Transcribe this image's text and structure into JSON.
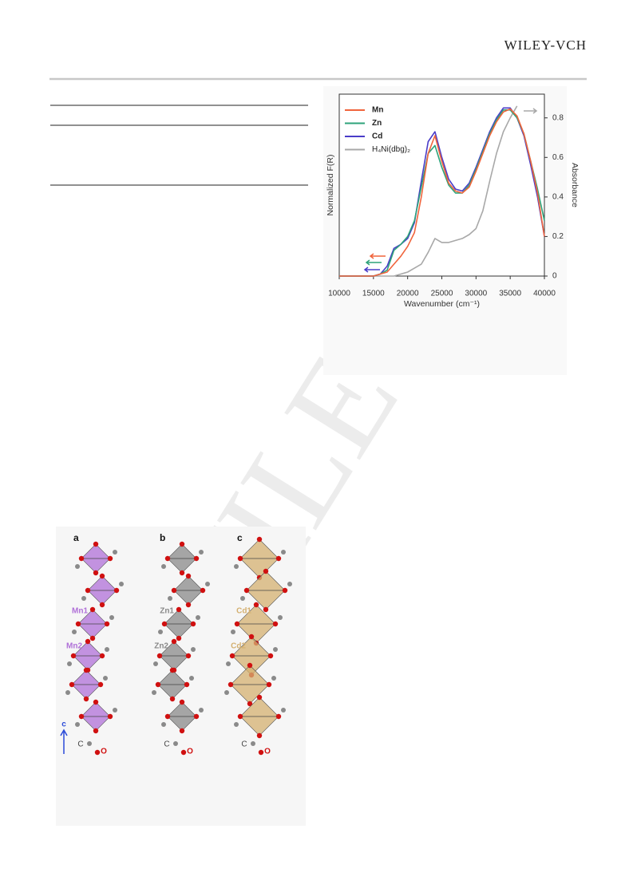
{
  "header": {
    "publisher": "WILEY-VCH"
  },
  "watermark": "WILEY",
  "chart_data": {
    "type": "line",
    "xlabel": "Wavenumber (cm⁻¹)",
    "ylabel": "Normalized F(R)",
    "y2label": "Absorbance",
    "x": [
      10000,
      11000,
      12000,
      13000,
      14000,
      15000,
      16000,
      17000,
      18000,
      19000,
      20000,
      21000,
      22000,
      23000,
      24000,
      25000,
      26000,
      27000,
      28000,
      29000,
      30000,
      31000,
      32000,
      33000,
      34000,
      35000,
      36000,
      37000,
      38000,
      39000,
      40000
    ],
    "series": [
      {
        "name": "Mn",
        "color": "#f0643c",
        "values": [
          0,
          0,
          0,
          0,
          0,
          0,
          0.01,
          0.02,
          0.06,
          0.1,
          0.15,
          0.22,
          0.4,
          0.62,
          0.71,
          0.58,
          0.47,
          0.43,
          0.42,
          0.45,
          0.53,
          0.62,
          0.71,
          0.78,
          0.83,
          0.845,
          0.81,
          0.72,
          0.58,
          0.42,
          0.2
        ]
      },
      {
        "name": "Zn",
        "color": "#2ea37a",
        "values": [
          0,
          0,
          0,
          0,
          0,
          0,
          0.01,
          0.03,
          0.13,
          0.16,
          0.2,
          0.28,
          0.45,
          0.62,
          0.66,
          0.55,
          0.46,
          0.42,
          0.42,
          0.46,
          0.54,
          0.63,
          0.72,
          0.79,
          0.84,
          0.84,
          0.8,
          0.72,
          0.58,
          0.44,
          0.28
        ]
      },
      {
        "name": "Cd",
        "color": "#4a3cc8",
        "values": [
          0,
          0,
          0,
          0,
          0,
          0,
          0.01,
          0.05,
          0.14,
          0.16,
          0.19,
          0.27,
          0.48,
          0.68,
          0.73,
          0.6,
          0.49,
          0.44,
          0.43,
          0.47,
          0.55,
          0.64,
          0.73,
          0.8,
          0.85,
          0.85,
          0.8,
          0.71,
          0.56,
          0.4,
          0.2
        ]
      },
      {
        "name": "H₄Ni(dbg)₂",
        "color": "#a8a8a8",
        "axis": "y2",
        "values": [
          0,
          0,
          0,
          0,
          0,
          0,
          0,
          0,
          0,
          0.01,
          0.02,
          0.04,
          0.06,
          0.12,
          0.19,
          0.17,
          0.17,
          0.18,
          0.19,
          0.21,
          0.24,
          0.33,
          0.48,
          0.62,
          0.73,
          0.8,
          0.86,
          null,
          null,
          null,
          null
        ]
      }
    ],
    "xlim": [
      10000,
      40000
    ],
    "xticks": [
      10000,
      15000,
      20000,
      25000,
      30000,
      35000,
      40000
    ],
    "ylim": [
      0,
      0.92
    ],
    "y2lim": [
      0,
      0.92
    ],
    "y2ticks": [
      0,
      0.2,
      0.4,
      0.6,
      0.8
    ],
    "legend": "upper left"
  },
  "figure": {
    "axis_label": "c",
    "panels": [
      {
        "label": "a",
        "site1": "Mn1",
        "site2": "Mn2",
        "carbon": "C",
        "oxygen": "O",
        "color": "#b070d8"
      },
      {
        "label": "b",
        "site1": "Zn1",
        "site2": "Zn2",
        "carbon": "C",
        "oxygen": "O",
        "color": "#8a8a8a"
      },
      {
        "label": "c",
        "site1": "Cd1",
        "site2": "Cd2",
        "carbon": "C",
        "oxygen": "O",
        "color": "#d4b070"
      }
    ]
  }
}
